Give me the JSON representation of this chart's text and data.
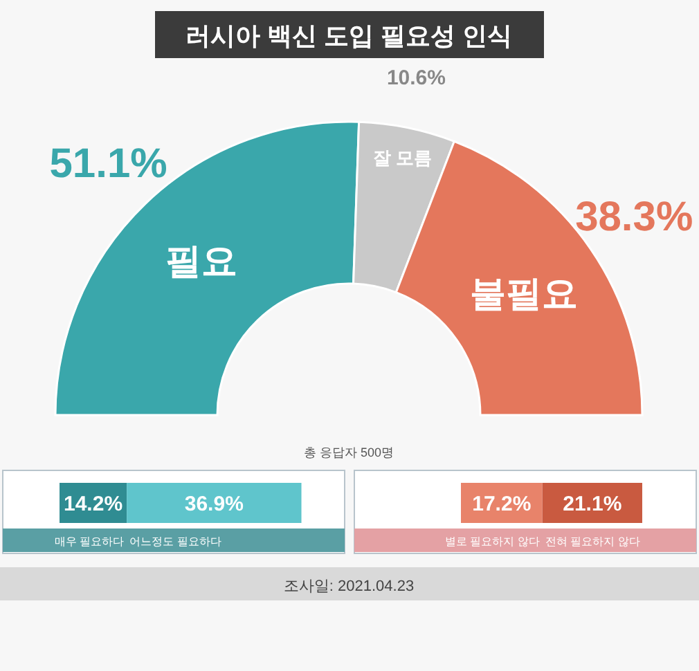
{
  "chart_data": [
    {
      "type": "donut",
      "title": "러시아 백신 도입 필요성 인식",
      "categories": [
        "필요",
        "잘 모름",
        "불필요"
      ],
      "values": [
        51.1,
        10.6,
        38.3
      ],
      "colors": [
        "#3aa7ab",
        "#c9c9c9",
        "#e4775c"
      ],
      "value_labels": [
        "51.1%",
        "10.6%",
        "38.3%"
      ],
      "annotations": [
        "총 응답자 500명",
        "조사일: 2021.04.23"
      ]
    },
    {
      "type": "bar",
      "orientation": "horizontal",
      "stacked": true,
      "categories": [
        null
      ],
      "series": [
        {
          "name": "매우 필요하다",
          "color": "#2f8c92",
          "values": [
            14.2
          ],
          "value_labels": [
            "14.2%"
          ]
        },
        {
          "name": "어느정도 필요하다",
          "color": "#5fc5cc",
          "values": [
            36.9
          ],
          "value_labels": [
            "36.9%"
          ]
        }
      ]
    },
    {
      "type": "bar",
      "orientation": "horizontal",
      "stacked": true,
      "categories": [
        null
      ],
      "series": [
        {
          "name": "별로 필요하지 않다",
          "color": "#e8836a",
          "values": [
            17.2
          ],
          "value_labels": [
            "17.2%"
          ]
        },
        {
          "name": "전혀 필요하지 않다",
          "color": "#c95a40",
          "values": [
            21.1
          ],
          "value_labels": [
            "21.1%"
          ]
        }
      ]
    }
  ]
}
